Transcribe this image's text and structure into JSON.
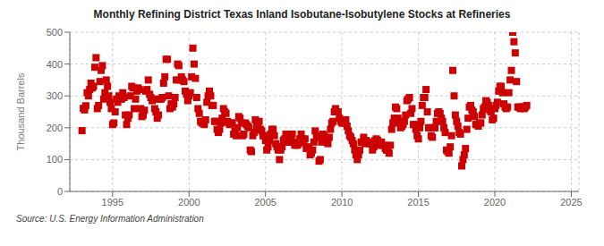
{
  "chart_data": {
    "type": "scatter",
    "title": "Monthly Refining District Texas Inland Isobutane-Isobutylene Stocks at Refineries",
    "ylabel": "Thousand Barrels",
    "source": "Source: U.S. Energy Information Administration",
    "color": "#cc0000",
    "marker": "square",
    "grid": true,
    "xlim": [
      1992.2,
      2025.5
    ],
    "ylim": [
      0,
      500
    ],
    "xticks": [
      1995,
      2000,
      2005,
      2010,
      2015,
      2020,
      2025
    ],
    "yticks": [
      0,
      100,
      200,
      300,
      400,
      500
    ],
    "x": [
      1993.0,
      1993.083,
      1993.167,
      1993.25,
      1993.333,
      1993.417,
      1993.5,
      1993.583,
      1993.667,
      1993.75,
      1993.833,
      1993.917,
      1994.0,
      1994.083,
      1994.167,
      1994.25,
      1994.333,
      1994.417,
      1994.5,
      1994.583,
      1994.667,
      1994.75,
      1994.833,
      1994.917,
      1995.0,
      1995.083,
      1995.167,
      1995.25,
      1995.333,
      1995.417,
      1995.5,
      1995.583,
      1995.667,
      1995.75,
      1995.833,
      1995.917,
      1996.0,
      1996.083,
      1996.167,
      1996.25,
      1996.333,
      1996.417,
      1996.5,
      1996.583,
      1996.667,
      1996.75,
      1996.833,
      1996.917,
      1997.0,
      1997.083,
      1997.167,
      1997.25,
      1997.333,
      1997.417,
      1997.5,
      1997.583,
      1997.667,
      1997.75,
      1997.833,
      1997.917,
      1998.0,
      1998.083,
      1998.167,
      1998.25,
      1998.333,
      1998.417,
      1998.5,
      1998.583,
      1998.667,
      1998.75,
      1998.833,
      1998.917,
      1999.0,
      1999.083,
      1999.167,
      1999.25,
      1999.333,
      1999.417,
      1999.5,
      1999.583,
      1999.667,
      1999.75,
      1999.833,
      1999.917,
      2000.0,
      2000.083,
      2000.167,
      2000.25,
      2000.333,
      2000.417,
      2000.5,
      2000.583,
      2000.667,
      2000.75,
      2000.833,
      2000.917,
      2001.0,
      2001.083,
      2001.167,
      2001.25,
      2001.333,
      2001.417,
      2001.5,
      2001.583,
      2001.667,
      2001.75,
      2001.833,
      2001.917,
      2002.0,
      2002.083,
      2002.167,
      2002.25,
      2002.333,
      2002.417,
      2002.5,
      2002.583,
      2002.667,
      2002.75,
      2002.833,
      2002.917,
      2003.0,
      2003.083,
      2003.167,
      2003.25,
      2003.333,
      2003.417,
      2003.5,
      2003.583,
      2003.667,
      2003.75,
      2003.833,
      2003.917,
      2004.0,
      2004.083,
      2004.167,
      2004.25,
      2004.333,
      2004.417,
      2004.5,
      2004.583,
      2004.667,
      2004.75,
      2004.833,
      2004.917,
      2005.0,
      2005.083,
      2005.167,
      2005.25,
      2005.333,
      2005.417,
      2005.5,
      2005.583,
      2005.667,
      2005.75,
      2005.833,
      2005.917,
      2006.0,
      2006.083,
      2006.167,
      2006.25,
      2006.333,
      2006.417,
      2006.5,
      2006.583,
      2006.667,
      2006.75,
      2006.833,
      2006.917,
      2007.0,
      2007.083,
      2007.167,
      2007.25,
      2007.333,
      2007.417,
      2007.5,
      2007.583,
      2007.667,
      2007.75,
      2007.833,
      2007.917,
      2008.0,
      2008.083,
      2008.167,
      2008.25,
      2008.333,
      2008.417,
      2008.5,
      2008.583,
      2008.667,
      2008.75,
      2008.833,
      2008.917,
      2009.0,
      2009.083,
      2009.167,
      2009.25,
      2009.333,
      2009.417,
      2009.5,
      2009.583,
      2009.667,
      2009.75,
      2009.833,
      2009.917,
      2010.0,
      2010.083,
      2010.167,
      2010.25,
      2010.333,
      2010.417,
      2010.5,
      2010.583,
      2010.667,
      2010.75,
      2010.833,
      2010.917,
      2011.0,
      2011.083,
      2011.167,
      2011.25,
      2011.333,
      2011.417,
      2011.5,
      2011.583,
      2011.667,
      2011.75,
      2011.833,
      2011.917,
      2012.0,
      2012.083,
      2012.167,
      2012.25,
      2012.333,
      2012.417,
      2012.5,
      2012.583,
      2012.667,
      2012.75,
      2012.833,
      2012.917,
      2013.0,
      2013.083,
      2013.167,
      2013.25,
      2013.333,
      2013.417,
      2013.5,
      2013.583,
      2013.667,
      2013.75,
      2013.833,
      2013.917,
      2014.0,
      2014.083,
      2014.167,
      2014.25,
      2014.333,
      2014.417,
      2014.5,
      2014.583,
      2014.667,
      2014.75,
      2014.833,
      2014.917,
      2015.0,
      2015.083,
      2015.167,
      2015.25,
      2015.333,
      2015.417,
      2015.5,
      2015.583,
      2015.667,
      2015.75,
      2015.833,
      2015.917,
      2016.0,
      2016.083,
      2016.167,
      2016.25,
      2016.333,
      2016.417,
      2016.5,
      2016.583,
      2016.667,
      2016.75,
      2016.833,
      2016.917,
      2017.0,
      2017.083,
      2017.167,
      2017.25,
      2017.333,
      2017.417,
      2017.5,
      2017.583,
      2017.667,
      2017.75,
      2017.833,
      2017.917,
      2018.0,
      2018.083,
      2018.167,
      2018.25,
      2018.333,
      2018.417,
      2018.5,
      2018.583,
      2018.667,
      2018.75,
      2018.833,
      2018.917,
      2019.0,
      2019.083,
      2019.167,
      2019.25,
      2019.333,
      2019.417,
      2019.5,
      2019.583,
      2019.667,
      2019.75,
      2019.833,
      2019.917,
      2020.0,
      2020.083,
      2020.167,
      2020.25,
      2020.333,
      2020.417,
      2020.5,
      2020.583,
      2020.667,
      2020.75,
      2020.833,
      2020.917,
      2021.0,
      2021.083,
      2021.167,
      2021.25,
      2021.333,
      2021.417,
      2021.5,
      2021.583,
      2021.667,
      2021.75,
      2021.833,
      2021.917,
      2022.0,
      2022.083
    ],
    "values": [
      191,
      261,
      256,
      269,
      310,
      300,
      320,
      340,
      325,
      330,
      390,
      420,
      260,
      270,
      345,
      380,
      395,
      290,
      310,
      350,
      330,
      300,
      280,
      260,
      210,
      215,
      250,
      290,
      280,
      300,
      290,
      290,
      310,
      295,
      240,
      210,
      230,
      240,
      300,
      330,
      325,
      260,
      290,
      315,
      325,
      320,
      260,
      235,
      240,
      255,
      315,
      320,
      350,
      305,
      295,
      285,
      290,
      260,
      250,
      230,
      240,
      290,
      290,
      295,
      340,
      360,
      415,
      415,
      300,
      260,
      275,
      265,
      275,
      295,
      350,
      400,
      395,
      350,
      360,
      350,
      345,
      315,
      305,
      285,
      300,
      310,
      360,
      450,
      400,
      355,
      295,
      260,
      245,
      220,
      215,
      215,
      210,
      225,
      280,
      300,
      315,
      300,
      270,
      270,
      220,
      220,
      195,
      185,
      195,
      215,
      230,
      260,
      250,
      245,
      220,
      215,
      210,
      215,
      215,
      180,
      190,
      175,
      200,
      235,
      230,
      215,
      175,
      180,
      215,
      210,
      205,
      200,
      130,
      125,
      175,
      185,
      225,
      205,
      215,
      220,
      195,
      190,
      175,
      175,
      160,
      130,
      140,
      160,
      180,
      195,
      195,
      175,
      150,
      140,
      130,
      100,
      130,
      140,
      160,
      165,
      180,
      155,
      155,
      170,
      175,
      180,
      155,
      145,
      155,
      145,
      150,
      165,
      180,
      165,
      155,
      165,
      135,
      135,
      140,
      115,
      120,
      130,
      155,
      190,
      175,
      170,
      95,
      100,
      155,
      180,
      175,
      165,
      155,
      150,
      170,
      195,
      215,
      220,
      250,
      260,
      250,
      250,
      230,
      220,
      215,
      215,
      215,
      225,
      205,
      190,
      175,
      170,
      160,
      150,
      130,
      115,
      100,
      115,
      130,
      155,
      155,
      170,
      150,
      160,
      155,
      155,
      150,
      150,
      130,
      140,
      160,
      165,
      160,
      150,
      145,
      155,
      145,
      145,
      135,
      130,
      130,
      120,
      145,
      195,
      215,
      230,
      265,
      260,
      230,
      215,
      200,
      205,
      210,
      220,
      240,
      285,
      290,
      295,
      245,
      260,
      210,
      210,
      195,
      175,
      165,
      200,
      220,
      270,
      295,
      295,
      320,
      250,
      200,
      200,
      175,
      170,
      200,
      200,
      220,
      245,
      250,
      245,
      230,
      220,
      200,
      185,
      130,
      125,
      120,
      140,
      175,
      380,
      300,
      240,
      220,
      205,
      185,
      180,
      80,
      100,
      115,
      135,
      195,
      230,
      265,
      270,
      255,
      250,
      235,
      210,
      210,
      205,
      215,
      215,
      240,
      260,
      265,
      285,
      280,
      270,
      255,
      250,
      225,
      230,
      260,
      270,
      280,
      315,
      330,
      330,
      310,
      275,
      265,
      260,
      265,
      310,
      350,
      380,
      500,
      470,
      435,
      345,
      265,
      265,
      260,
      265,
      265,
      260,
      265,
      270
    ]
  }
}
